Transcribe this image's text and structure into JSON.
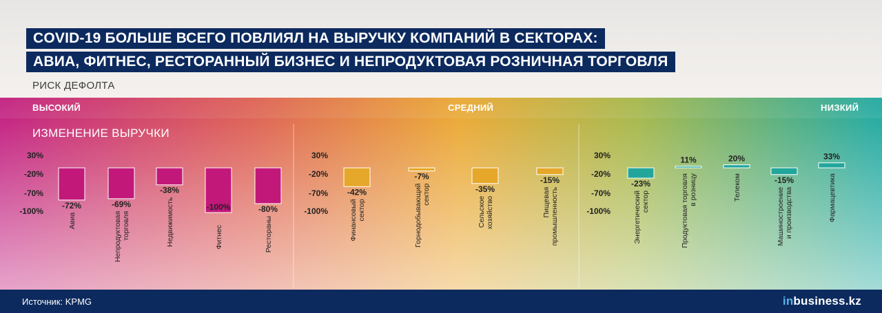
{
  "title_line1": "COVID-19 БОЛЬШЕ ВСЕГО ПОВЛИЯЛ НА ВЫРУЧКУ КОМПАНИЙ В СЕКТОРАХ:",
  "title_line2": "АВИА, ФИТНЕС, РЕСТОРАННЫЙ БИЗНЕС И НЕПРОДУКТОВАЯ РОЗНИЧНАЯ ТОРГОВЛЯ",
  "risk_label": "РИСК ДЕФОЛТА",
  "risk_levels": {
    "high": "ВЫСОКИЙ",
    "medium": "СРЕДНИЙ",
    "low": "НИЗКИЙ"
  },
  "revenue_label": "ИЗМЕНЕНИЕ ВЫРУЧКИ",
  "source": "Источник: KPMG",
  "brand": {
    "prefix": "in",
    "name": "business.kz"
  },
  "colors": {
    "high": "#c2187a",
    "medium": "#e6a82a",
    "low": "#22a69b",
    "navy": "#0c2a5e"
  },
  "chart_data": [
    {
      "type": "bar",
      "group": "high",
      "yticks": [
        "30%",
        "-20%",
        "-70%",
        "-100%"
      ],
      "categories": [
        [
          "Авиа"
        ],
        [
          "Непродуктовая",
          "торговля"
        ],
        [
          "Недвижимость"
        ],
        [
          "Фитнес"
        ],
        [
          "Рестораны"
        ]
      ],
      "values": [
        -72,
        -69,
        -38,
        -100,
        -80
      ],
      "labels": [
        "-72%",
        "-69%",
        "-38%",
        "-100%",
        "-80%"
      ],
      "ylim": [
        -100,
        30
      ]
    },
    {
      "type": "bar",
      "group": "medium",
      "yticks": [
        "30%",
        "-20%",
        "-70%",
        "-100%"
      ],
      "categories": [
        [
          "Финансовый",
          "сектор"
        ],
        [
          "Горнодобывающий",
          "сектор"
        ],
        [
          "Сельское",
          "хозяйство"
        ],
        [
          "Пищевая",
          "промышленность"
        ]
      ],
      "values": [
        -42,
        -7,
        -35,
        -15
      ],
      "labels": [
        "-42%",
        "-7%",
        "-35%",
        "-15%"
      ],
      "ylim": [
        -100,
        30
      ]
    },
    {
      "type": "bar",
      "group": "low",
      "yticks": [
        "30%",
        "-20%",
        "-70%",
        "-100%"
      ],
      "categories": [
        [
          "Энергетический",
          "сектор"
        ],
        [
          "Продуктовая торговля",
          "в розницу"
        ],
        [
          "Телеком"
        ],
        [
          "Машиностроение",
          "и производства"
        ],
        [
          "Фармацевтика"
        ]
      ],
      "values": [
        -23,
        11,
        20,
        -15,
        33
      ],
      "labels": [
        "-23%",
        "11%",
        "20%",
        "-15%",
        "33%"
      ],
      "ylim": [
        -100,
        30
      ]
    }
  ]
}
